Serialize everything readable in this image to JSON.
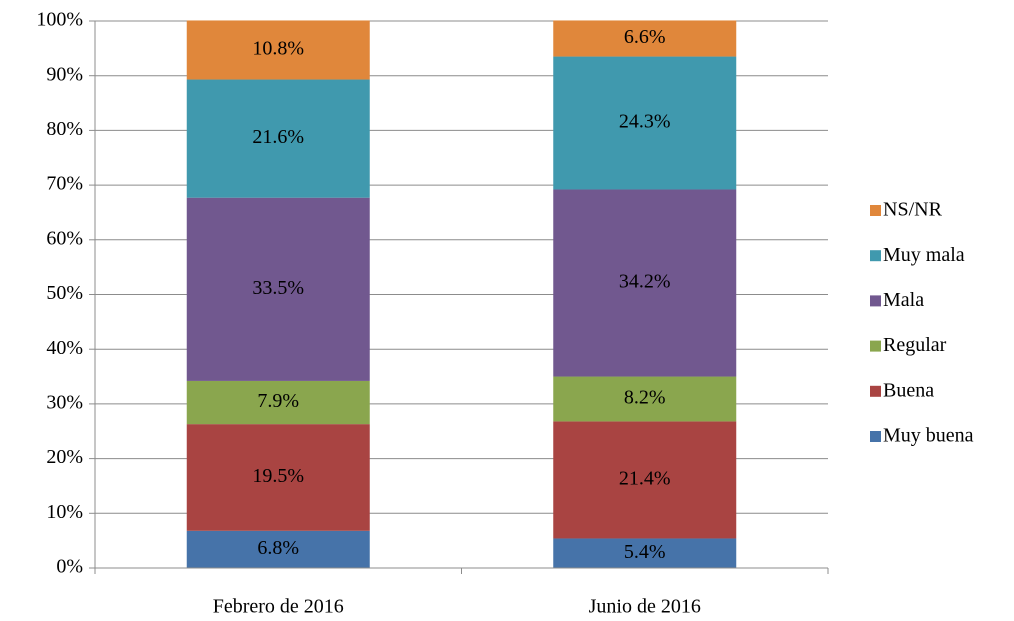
{
  "chart_data": {
    "type": "stacked_bar",
    "categories": [
      "Febrero de 2016",
      "Junio de 2016"
    ],
    "series": [
      {
        "name": "Muy buena",
        "color": "#4673a9",
        "values": [
          6.8,
          5.4
        ],
        "value_labels": [
          "6.8%",
          "5.4%"
        ]
      },
      {
        "name": "Buena",
        "color": "#a94442",
        "values": [
          19.5,
          21.4
        ],
        "value_labels": [
          "19.5%",
          "21.4%"
        ]
      },
      {
        "name": "Regular",
        "color": "#8aa64e",
        "values": [
          7.9,
          8.2
        ],
        "value_labels": [
          "7.9%",
          "8.2%"
        ]
      },
      {
        "name": "Mala",
        "color": "#71588f",
        "values": [
          33.5,
          34.2
        ],
        "value_labels": [
          "33.5%",
          "34.2%"
        ]
      },
      {
        "name": "Muy mala",
        "color": "#4099ae",
        "values": [
          21.6,
          24.3
        ],
        "value_labels": [
          "21.6%",
          "24.3%"
        ]
      },
      {
        "name": "NS/NR",
        "color": "#e0873b",
        "values": [
          10.8,
          6.6
        ],
        "value_labels": [
          "10.8%",
          "6.6%"
        ]
      }
    ],
    "ylim": [
      0,
      100
    ],
    "yticks": [
      {
        "value": 0,
        "label": "0%"
      },
      {
        "value": 10,
        "label": "10%"
      },
      {
        "value": 20,
        "label": "20%"
      },
      {
        "value": 30,
        "label": "30%"
      },
      {
        "value": 40,
        "label": "40%"
      },
      {
        "value": 50,
        "label": "50%"
      },
      {
        "value": 60,
        "label": "60%"
      },
      {
        "value": 70,
        "label": "70%"
      },
      {
        "value": 80,
        "label": "80%"
      },
      {
        "value": 90,
        "label": "90%"
      },
      {
        "value": 100,
        "label": "100%"
      }
    ],
    "grid": true,
    "legend": "right"
  }
}
